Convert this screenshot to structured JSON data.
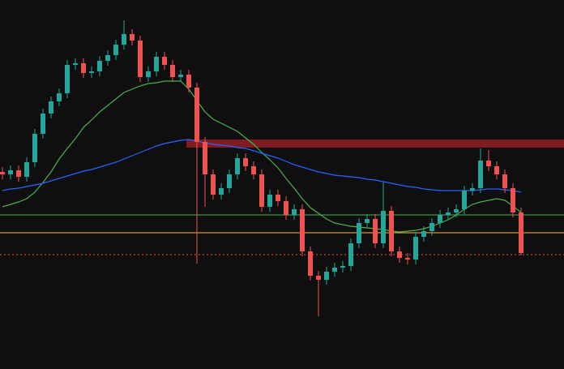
{
  "chart_data": {
    "type": "candlestick",
    "ylim": [
      0,
      455
    ],
    "up_color": "#26a69a",
    "down_color": "#ef5350",
    "open": [
      243,
      240,
      245,
      237,
      255,
      290,
      315,
      330,
      340,
      375,
      377,
      365,
      367,
      380,
      387,
      400,
      413,
      405,
      360,
      367,
      385,
      375,
      360,
      363,
      347,
      280,
      240,
      215,
      223,
      240,
      260,
      250,
      240,
      200,
      215,
      207,
      190,
      197,
      145,
      115,
      110,
      120,
      125,
      127,
      155,
      180,
      185,
      155,
      195,
      145,
      137,
      135,
      163,
      170,
      180,
      190,
      193,
      197,
      220,
      223,
      257,
      250,
      240,
      223,
      193
    ],
    "high": [
      249,
      251,
      251,
      261,
      296,
      321,
      336,
      346,
      381,
      383,
      383,
      373,
      386,
      393,
      406,
      430,
      419,
      411,
      373,
      391,
      391,
      381,
      369,
      369,
      353,
      286,
      246,
      229,
      246,
      266,
      266,
      256,
      246,
      221,
      221,
      213,
      203,
      203,
      151,
      121,
      126,
      131,
      133,
      161,
      186,
      191,
      191,
      230,
      201,
      151,
      143,
      169,
      176,
      186,
      196,
      199,
      203,
      226,
      229,
      272,
      270,
      256,
      246,
      229,
      199
    ],
    "low": [
      234,
      234,
      231,
      231,
      249,
      284,
      309,
      324,
      334,
      369,
      359,
      359,
      361,
      374,
      381,
      394,
      399,
      354,
      354,
      361,
      369,
      354,
      354,
      341,
      130,
      200,
      209,
      209,
      217,
      234,
      244,
      234,
      194,
      194,
      201,
      184,
      184,
      139,
      109,
      65,
      104,
      114,
      119,
      121,
      149,
      174,
      149,
      149,
      139,
      131,
      129,
      129,
      157,
      164,
      174,
      184,
      187,
      191,
      214,
      217,
      244,
      234,
      217,
      187,
      140
    ],
    "close": [
      240,
      245,
      237,
      255,
      290,
      315,
      330,
      340,
      375,
      377,
      365,
      367,
      380,
      387,
      400,
      413,
      405,
      360,
      367,
      385,
      375,
      360,
      363,
      347,
      280,
      240,
      215,
      223,
      240,
      260,
      250,
      240,
      200,
      215,
      207,
      190,
      197,
      145,
      115,
      110,
      120,
      125,
      127,
      155,
      180,
      185,
      155,
      195,
      145,
      137,
      135,
      163,
      170,
      180,
      190,
      193,
      197,
      220,
      223,
      257,
      250,
      240,
      223,
      193,
      143
    ],
    "series": [
      {
        "color": "#4caf50",
        "values": [
          200,
          203,
          206,
          210,
          218,
          230,
          243,
          259,
          272,
          284,
          298,
          307,
          317,
          325,
          333,
          341,
          345,
          349,
          352,
          353,
          355,
          355,
          355,
          345,
          331,
          317,
          308,
          303,
          298,
          293,
          285,
          277,
          267,
          258,
          248,
          235,
          223,
          210,
          199,
          192,
          185,
          180,
          178,
          176,
          175,
          174,
          173,
          172,
          170,
          169,
          170,
          171,
          173,
          176,
          180,
          184,
          190,
          197,
          203,
          206,
          208,
          210,
          208,
          201,
          193
        ]
      },
      {
        "color": "#2962ff",
        "values": [
          220,
          222,
          223,
          225,
          227,
          229,
          232,
          235,
          238,
          241,
          244,
          246,
          249,
          252,
          255,
          259,
          263,
          267,
          271,
          275,
          278,
          280,
          282,
          283,
          281,
          279,
          277,
          276,
          275,
          273,
          272,
          269,
          266,
          263,
          260,
          256,
          252,
          249,
          246,
          243,
          241,
          239,
          238,
          237,
          236,
          234,
          233,
          231,
          229,
          227,
          225,
          224,
          222,
          221,
          220,
          220,
          220,
          220,
          220,
          221,
          222,
          222,
          221,
          220,
          218
        ]
      }
    ],
    "zone": {
      "low": 273,
      "high": 283,
      "start": 23,
      "color": "#8b1e24"
    },
    "levels": [
      {
        "value": 190,
        "color": "#4caf50",
        "dashed": false
      },
      {
        "value": 168,
        "color": "#ffb74d",
        "dashed": false
      },
      {
        "value": 141,
        "color": "#ef5350",
        "dashed": true
      }
    ]
  }
}
